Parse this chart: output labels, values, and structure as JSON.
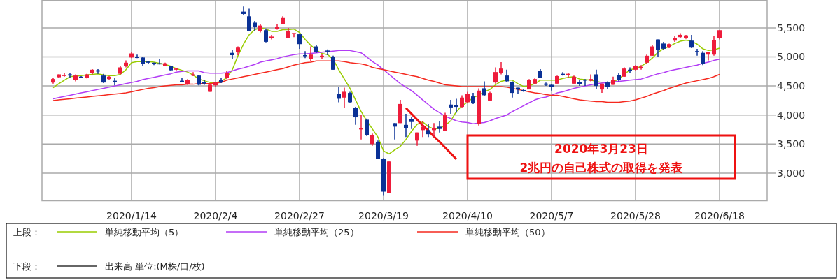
{
  "chart_data": {
    "type": "candlestick",
    "categories": [
      null,
      null,
      null,
      null,
      null,
      null,
      null,
      null,
      null,
      null,
      null,
      null,
      null,
      null,
      "2020/1/14",
      null,
      null,
      null,
      null,
      null,
      null,
      null,
      null,
      null,
      null,
      null,
      null,
      null,
      null,
      "2020/2/4",
      null,
      null,
      null,
      null,
      null,
      null,
      null,
      null,
      null,
      null,
      null,
      null,
      null,
      null,
      "2020/2/27",
      null,
      null,
      null,
      null,
      null,
      null,
      null,
      null,
      null,
      null,
      null,
      null,
      null,
      null,
      "2020/3/19",
      null,
      null,
      null,
      null,
      null,
      null,
      null,
      null,
      null,
      null,
      null,
      null,
      null,
      null,
      "2020/4/10",
      null,
      null,
      null,
      null,
      null,
      null,
      null,
      null,
      null,
      null,
      null,
      null,
      null,
      null,
      "2020/5/7",
      null,
      null,
      null,
      null,
      null,
      null,
      null,
      null,
      null,
      null,
      null,
      null,
      null,
      null,
      "2020/5/28",
      null,
      null,
      null,
      null,
      null,
      null,
      null,
      null,
      null,
      null,
      null,
      null,
      null,
      null,
      "2020/6/18"
    ],
    "ohlc": [
      [
        4560,
        4640,
        4540,
        4620
      ],
      [
        4650,
        4700,
        4640,
        4700
      ],
      [
        4680,
        4720,
        4660,
        4690
      ],
      [
        4700,
        4730,
        4640,
        4680
      ],
      [
        4600,
        4700,
        4580,
        4680
      ],
      [
        4660,
        4670,
        4640,
        4650
      ],
      [
        4640,
        4710,
        4630,
        4700
      ],
      [
        4720,
        4790,
        4700,
        4780
      ],
      [
        4770,
        4790,
        4710,
        4750
      ],
      [
        4680,
        4710,
        4550,
        4560
      ],
      [
        4620,
        4670,
        4610,
        4660
      ],
      [
        4590,
        4640,
        4510,
        4580
      ],
      [
        4710,
        4840,
        4700,
        4820
      ],
      [
        4840,
        4940,
        4820,
        4900
      ],
      [
        4990,
        5080,
        4980,
        5060
      ],
      [
        5000,
        5040,
        4980,
        4990
      ],
      [
        4990,
        5000,
        4840,
        4880
      ],
      [
        4920,
        4930,
        4880,
        4900
      ],
      [
        4900,
        4900,
        4860,
        4880
      ],
      [
        4890,
        4960,
        4870,
        4880
      ],
      [
        4850,
        4900,
        4840,
        4890
      ],
      [
        4840,
        4850,
        4760,
        4770
      ],
      [
        4780,
        4810,
        4770,
        4800
      ],
      [
        4590,
        4640,
        4580,
        4580
      ],
      [
        4530,
        4620,
        4520,
        4600
      ],
      [
        4680,
        4740,
        4670,
        4700
      ],
      [
        4680,
        4690,
        4510,
        4520
      ],
      [
        4570,
        4600,
        4520,
        4540
      ],
      [
        4400,
        4530,
        4400,
        4520
      ],
      [
        4510,
        4570,
        4480,
        4560
      ],
      [
        4600,
        4640,
        4550,
        4560
      ],
      [
        4640,
        4760,
        4620,
        4720
      ],
      [
        5070,
        5120,
        4960,
        5030
      ],
      [
        5090,
        5180,
        5030,
        5160
      ],
      [
        5780,
        5870,
        5720,
        5740
      ],
      [
        5700,
        5830,
        5440,
        5450
      ],
      [
        5590,
        5620,
        5440,
        5520
      ],
      [
        5440,
        5560,
        5420,
        5540
      ],
      [
        5460,
        5490,
        5250,
        5260
      ],
      [
        5330,
        5380,
        5300,
        5350
      ],
      [
        5480,
        5570,
        5470,
        5520
      ],
      [
        5570,
        5700,
        5560,
        5670
      ],
      [
        5330,
        5500,
        5320,
        5440
      ],
      [
        5400,
        5410,
        5340,
        5410
      ],
      [
        5390,
        5400,
        5140,
        5220
      ],
      [
        5030,
        5100,
        4980,
        5020
      ],
      [
        4960,
        5180,
        4920,
        5040
      ],
      [
        5180,
        5200,
        5070,
        5080
      ],
      [
        5000,
        5050,
        4960,
        5020
      ],
      [
        5110,
        5130,
        5030,
        5100
      ],
      [
        5000,
        5020,
        4780,
        4780
      ],
      [
        4360,
        4490,
        4220,
        4280
      ],
      [
        4300,
        4470,
        4120,
        4400
      ],
      [
        4380,
        4400,
        4200,
        4220
      ],
      [
        4120,
        4140,
        3830,
        3960
      ],
      [
        3760,
        4000,
        3580,
        3770
      ],
      [
        3920,
        3940,
        3640,
        3660
      ],
      [
        3500,
        3680,
        3470,
        3660
      ],
      [
        3540,
        3560,
        3240,
        3250
      ],
      [
        3250,
        3260,
        2620,
        2680
      ],
      [
        2660,
        3200,
        2660,
        3200
      ],
      [
        3860,
        3860,
        3580,
        3800
      ],
      [
        3860,
        4260,
        3860,
        4190
      ],
      [
        3830,
        4020,
        3620,
        3780
      ],
      [
        3930,
        3960,
        3760,
        3880
      ],
      [
        3560,
        3700,
        3470,
        3700
      ],
      [
        3740,
        3900,
        3620,
        3800
      ],
      [
        3740,
        3840,
        3620,
        3670
      ],
      [
        3740,
        3860,
        3620,
        3780
      ],
      [
        3800,
        3890,
        3700,
        3760
      ],
      [
        3720,
        4040,
        3720,
        4000
      ],
      [
        4180,
        4260,
        4020,
        4130
      ],
      [
        4170,
        4280,
        4040,
        4140
      ],
      [
        4140,
        4340,
        4130,
        4300
      ],
      [
        4220,
        4400,
        4210,
        4360
      ],
      [
        4320,
        4380,
        4190,
        4200
      ],
      [
        3840,
        4460,
        3820,
        4420
      ],
      [
        4460,
        4580,
        4320,
        4340
      ],
      [
        4250,
        4400,
        4240,
        4380
      ],
      [
        4560,
        4820,
        4540,
        4740
      ],
      [
        4720,
        4910,
        4700,
        4800
      ],
      [
        4680,
        4780,
        4570,
        4580
      ],
      [
        4570,
        4580,
        4300,
        4380
      ],
      [
        4470,
        4470,
        4360,
        4440
      ],
      [
        4430,
        4440,
        4400,
        4420
      ],
      [
        4440,
        4620,
        4440,
        4600
      ],
      [
        4540,
        4630,
        4530,
        4620
      ],
      [
        4760,
        4790,
        4640,
        4640
      ],
      [
        4540,
        4560,
        4500,
        4520
      ],
      [
        4520,
        4530,
        4420,
        4480
      ],
      [
        4540,
        4680,
        4540,
        4670
      ],
      [
        4710,
        4740,
        4680,
        4700
      ],
      [
        4690,
        4730,
        4640,
        4710
      ],
      [
        4540,
        4680,
        4540,
        4660
      ],
      [
        4570,
        4600,
        4500,
        4530
      ],
      [
        4610,
        4620,
        4500,
        4600
      ],
      [
        4590,
        4700,
        4580,
        4620
      ],
      [
        4700,
        4780,
        4440,
        4500
      ],
      [
        4440,
        4540,
        4380,
        4540
      ],
      [
        4560,
        4580,
        4450,
        4480
      ],
      [
        4520,
        4660,
        4520,
        4600
      ],
      [
        4690,
        4720,
        4580,
        4600
      ],
      [
        4660,
        4820,
        4660,
        4800
      ],
      [
        4780,
        4820,
        4730,
        4760
      ],
      [
        4780,
        4860,
        4770,
        4840
      ],
      [
        4810,
        4860,
        4780,
        4830
      ],
      [
        4900,
        5040,
        4880,
        5020
      ],
      [
        5020,
        5200,
        5020,
        5180
      ],
      [
        5300,
        5300,
        5000,
        5120
      ],
      [
        5230,
        5260,
        5120,
        5140
      ],
      [
        5160,
        5230,
        5150,
        5220
      ],
      [
        5280,
        5360,
        5260,
        5330
      ],
      [
        5340,
        5410,
        5320,
        5380
      ],
      [
        5320,
        5380,
        5310,
        5370
      ],
      [
        5280,
        5380,
        5150,
        5160
      ],
      [
        5100,
        5140,
        5020,
        5080
      ],
      [
        5070,
        5100,
        4860,
        4880
      ],
      [
        5040,
        5080,
        4940,
        5080
      ],
      [
        5040,
        5360,
        5020,
        5290
      ],
      [
        5320,
        5460,
        5300,
        5460
      ]
    ],
    "colors": [
      "#ee1c3b",
      "#ee1c3b",
      "#ee1c3b",
      "#0a3196",
      "#ee1c3b",
      "#0a3196",
      "#ee1c3b",
      "#ee1c3b",
      "#0a3196",
      "#0a3196",
      "#ee1c3b",
      "#0a3196",
      "#ee1c3b",
      "#ee1c3b",
      "#ee1c3b",
      "#0a3196",
      "#0a3196",
      "#0a3196",
      "#0a3196",
      "#0a3196",
      "#ee1c3b",
      "#0a3196",
      "#ee1c3b",
      "#0a3196",
      "#ee1c3b",
      "#ee1c3b",
      "#0a3196",
      "#0a3196",
      "#ee1c3b",
      "#ee1c3b",
      "#0a3196",
      "#ee1c3b",
      "#0a3196",
      "#ee1c3b",
      "#0a3196",
      "#0a3196",
      "#0a3196",
      "#ee1c3b",
      "#0a3196",
      "#ee1c3b",
      "#ee1c3b",
      "#ee1c3b",
      "#ee1c3b",
      "#ee1c3b",
      "#0a3196",
      "#0a3196",
      "#ee1c3b",
      "#0a3196",
      "#ee1c3b",
      "#0a3196",
      "#0a3196",
      "#0a3196",
      "#ee1c3b",
      "#0a3196",
      "#0a3196",
      "#ee1c3b",
      "#0a3196",
      "#ee1c3b",
      "#0a3196",
      "#0a3196",
      "#ee1c3b",
      "#0a3196",
      "#ee1c3b",
      "#0a3196",
      "#0a3196",
      "#ee1c3b",
      "#ee1c3b",
      "#0a3196",
      "#ee1c3b",
      "#0a3196",
      "#ee1c3b",
      "#0a3196",
      "#0a3196",
      "#ee1c3b",
      "#ee1c3b",
      "#0a3196",
      "#ee1c3b",
      "#0a3196",
      "#ee1c3b",
      "#ee1c3b",
      "#ee1c3b",
      "#0a3196",
      "#0a3196",
      "#0a3196",
      "#0a3196",
      "#ee1c3b",
      "#ee1c3b",
      "#0a3196",
      "#0a3196",
      "#0a3196",
      "#ee1c3b",
      "#0a3196",
      "#ee1c3b",
      "#ee1c3b",
      "#0a3196",
      "#0a3196",
      "#ee1c3b",
      "#0a3196",
      "#ee1c3b",
      "#0a3196",
      "#ee1c3b",
      "#0a3196",
      "#ee1c3b",
      "#0a3196",
      "#ee1c3b",
      "#ee1c3b",
      "#ee1c3b",
      "#ee1c3b",
      "#0a3196",
      "#0a3196",
      "#ee1c3b",
      "#ee1c3b",
      "#ee1c3b",
      "#ee1c3b",
      "#0a3196",
      "#0a3196",
      "#0a3196",
      "#ee1c3b",
      "#ee1c3b",
      "#ee1c3b"
    ],
    "series": [
      {
        "type": "line",
        "name": "単純移動平均（5）",
        "color": "#99cc00",
        "values": [
          4470,
          4540,
          4600,
          4660,
          4670,
          4680,
          4690,
          4700,
          4710,
          4690,
          4680,
          4680,
          4700,
          4780,
          4900,
          4920,
          4920,
          4920,
          4910,
          4890,
          4870,
          4840,
          4800,
          4770,
          4740,
          4690,
          4620,
          4590,
          4560,
          4560,
          4580,
          4640,
          4780,
          5020,
          5220,
          5380,
          5470,
          5500,
          5480,
          5440,
          5440,
          5470,
          5470,
          5480,
          5420,
          5300,
          5200,
          5120,
          5060,
          5040,
          4960,
          4780,
          4620,
          4460,
          4260,
          4060,
          3900,
          3760,
          3620,
          3380,
          3330,
          3400,
          3460,
          3580,
          3720,
          3840,
          3880,
          3800,
          3760,
          3770,
          3820,
          3900,
          4060,
          4160,
          4220,
          4300,
          4340,
          4400,
          4440,
          4520,
          4580,
          4600,
          4600,
          4540,
          4490,
          4500,
          4540,
          4600,
          4600,
          4600,
          4600,
          4630,
          4650,
          4660,
          4620,
          4610,
          4600,
          4580,
          4560,
          4560,
          4570,
          4620,
          4700,
          4780,
          4800,
          4840,
          4900,
          4980,
          5080,
          5140,
          5180,
          5230,
          5270,
          5290,
          5270,
          5220,
          5140,
          5110,
          5120,
          5150
        ]
      },
      {
        "type": "line",
        "name": "単純移動平均（25）",
        "color": "#b23cf5",
        "values": [
          4280,
          4300,
          4320,
          4340,
          4360,
          4380,
          4400,
          4420,
          4440,
          4460,
          4480,
          4500,
          4520,
          4540,
          4560,
          4580,
          4610,
          4630,
          4650,
          4670,
          4690,
          4710,
          4740,
          4750,
          4760,
          4760,
          4760,
          4730,
          4720,
          4720,
          4720,
          4730,
          4760,
          4790,
          4810,
          4840,
          4870,
          4910,
          4930,
          4950,
          4970,
          5000,
          5020,
          5040,
          5050,
          5050,
          5060,
          5070,
          5080,
          5090,
          5100,
          5110,
          5110,
          5110,
          5090,
          5070,
          5000,
          4920,
          4860,
          4780,
          4700,
          4620,
          4540,
          4480,
          4420,
          4340,
          4260,
          4180,
          4100,
          4040,
          3980,
          3940,
          3900,
          3880,
          3870,
          3850,
          3860,
          3870,
          3900,
          3940,
          3970,
          4000,
          4060,
          4110,
          4160,
          4210,
          4260,
          4290,
          4310,
          4340,
          4380,
          4400,
          4430,
          4460,
          4480,
          4500,
          4520,
          4540,
          4550,
          4560,
          4570,
          4580,
          4590,
          4600,
          4610,
          4620,
          4650,
          4680,
          4710,
          4730,
          4760,
          4780,
          4800,
          4820,
          4840,
          4860,
          4890,
          4910,
          4940,
          4960
        ]
      },
      {
        "type": "line",
        "name": "単純移動平均（50）",
        "color": "#f5281e",
        "values": [
          4250,
          4260,
          4270,
          4280,
          4290,
          4300,
          4310,
          4320,
          4330,
          4340,
          4350,
          4360,
          4370,
          4380,
          4400,
          4420,
          4440,
          4460,
          4470,
          4490,
          4500,
          4510,
          4520,
          4520,
          4530,
          4530,
          4540,
          4540,
          4540,
          4550,
          4560,
          4600,
          4620,
          4640,
          4660,
          4680,
          4700,
          4720,
          4740,
          4760,
          4780,
          4800,
          4830,
          4860,
          4880,
          4900,
          4910,
          4930,
          4930,
          4930,
          4930,
          4930,
          4920,
          4900,
          4890,
          4880,
          4860,
          4820,
          4800,
          4780,
          4760,
          4740,
          4720,
          4700,
          4680,
          4660,
          4630,
          4600,
          4580,
          4550,
          4520,
          4510,
          4500,
          4490,
          4490,
          4490,
          4490,
          4490,
          4490,
          4490,
          4490,
          4480,
          4460,
          4440,
          4420,
          4400,
          4380,
          4370,
          4350,
          4340,
          4340,
          4320,
          4300,
          4280,
          4260,
          4250,
          4240,
          4230,
          4230,
          4220,
          4220,
          4220,
          4230,
          4240,
          4260,
          4290,
          4320,
          4360,
          4390,
          4420,
          4460,
          4490,
          4520,
          4550,
          4570,
          4590,
          4610,
          4630,
          4660,
          4700
        ]
      },
      {
        "type": "line",
        "color": "#ee1111",
        "values": [
          null,
          null,
          null,
          null,
          null,
          null,
          null,
          null,
          null,
          null,
          null,
          null,
          null,
          null,
          null,
          null,
          null,
          null,
          null,
          null,
          null,
          null,
          null,
          null,
          null,
          null,
          null,
          null,
          null,
          null,
          null,
          null,
          null,
          null,
          null,
          null,
          null,
          null,
          null,
          null,
          null,
          null,
          null,
          null,
          null,
          null,
          null,
          null,
          null,
          null,
          null,
          null,
          null,
          null,
          null,
          null,
          null,
          null,
          null,
          null,
          null,
          null,
          null,
          4120,
          4020,
          3920,
          3820,
          3730,
          3630,
          3540,
          3440,
          3340,
          3240,
          null,
          null,
          null,
          null,
          null,
          null,
          null,
          null,
          null,
          null,
          null,
          null,
          null,
          null,
          null,
          null,
          null,
          null,
          null,
          null,
          null,
          null,
          null,
          null,
          null,
          null,
          null,
          null,
          null,
          null,
          null,
          null,
          null,
          null,
          null,
          null,
          null,
          null,
          null,
          null,
          null,
          null,
          null,
          null,
          null,
          null,
          null
        ]
      }
    ],
    "ylim": [
      2530,
      5980
    ],
    "yticks": [
      {
        "value": 3000,
        "label": "3,000"
      },
      {
        "value": 3500,
        "label": "3,500"
      },
      {
        "value": 4000,
        "label": "4,000"
      },
      {
        "value": 4500,
        "label": "4,500"
      },
      {
        "value": 5000,
        "label": "5,000"
      },
      {
        "value": 5500,
        "label": "5,500"
      }
    ],
    "grid": true,
    "legend": "bottom",
    "legend_title": "上段：",
    "annotations": [
      "2020年3月23日",
      "2兆円の自己株式の取得を発表",
      "下段：",
      "出来高 単位:(M株/口/枚)"
    ]
  }
}
